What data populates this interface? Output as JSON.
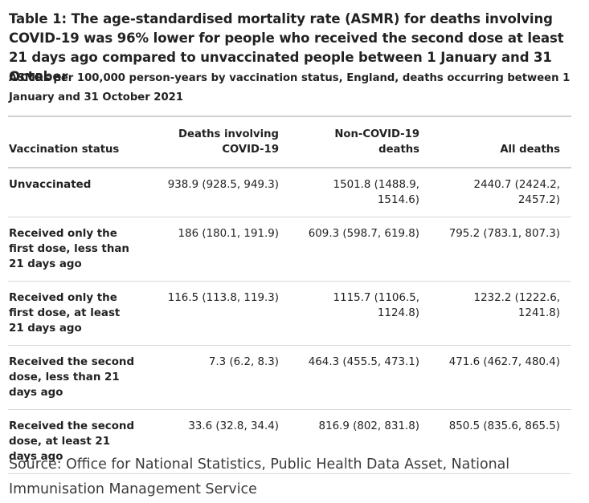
{
  "title": "Table 1: The age-standardised mortality rate (ASMR) for deaths involving COVID-19 was 96% lower for people who received the second dose at least 21 days ago compared to unvaccinated people between 1 January and 31 October",
  "subtitle": "ASMRs per 100,000 person-years by vaccination status, England, deaths occurring between 1 January and 31 October 2021",
  "table": {
    "headers": [
      "Vaccination status",
      "Deaths involving COVID-19",
      "Non-COVID-19 deaths",
      "All deaths"
    ],
    "rows": [
      {
        "status": "Unvaccinated",
        "covid": "938.9 (928.5, 949.3)",
        "non_covid": "1501.8 (1488.9, 1514.6)",
        "all": "2440.7 (2424.2, 2457.2)"
      },
      {
        "status": "Received only the first dose, less than 21 days ago",
        "covid": "186 (180.1, 191.9)",
        "non_covid": "609.3 (598.7, 619.8)",
        "all": "795.2 (783.1, 807.3)"
      },
      {
        "status": "Received only the first dose, at least 21 days ago",
        "covid": "116.5 (113.8, 119.3)",
        "non_covid": "1115.7 (1106.5, 1124.8)",
        "all": "1232.2 (1222.6, 1241.8)"
      },
      {
        "status": "Received the second dose, less than 21 days ago",
        "covid": "7.3 (6.2, 8.3)",
        "non_covid": "464.3 (455.5, 473.1)",
        "all": "471.6 (462.7, 480.4)"
      },
      {
        "status": "Received the second dose, at least 21 days ago",
        "covid": "33.6 (32.8, 34.4)",
        "non_covid": "816.9 (802, 831.8)",
        "all": "850.5 (835.6, 865.5)"
      }
    ]
  },
  "source": "Source: Office for National Statistics, Public Health Data Asset, National Immunisation Management Service"
}
